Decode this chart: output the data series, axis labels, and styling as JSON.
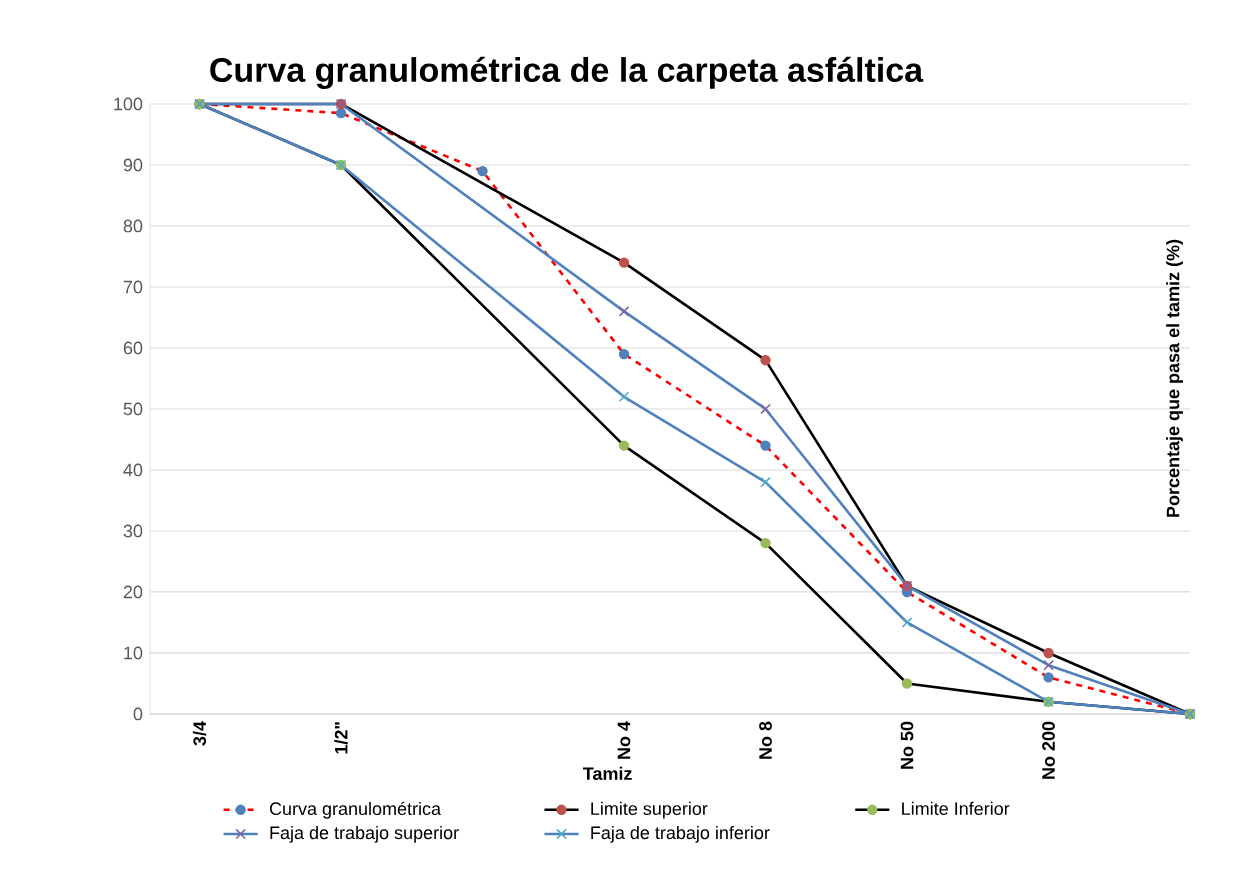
{
  "chart_data": {
    "type": "line",
    "title": "Curva granulométrica de la carpeta asfáltica",
    "xlabel": "Tamiz",
    "ylabel": "Porcentaje que pasa el tamiz (%)",
    "categories": [
      "3/4",
      "1/2\"",
      null,
      "No 4",
      "No 8",
      "No 50",
      "No 200",
      null
    ],
    "ylim": [
      0,
      100
    ],
    "yticks": [
      0,
      10,
      20,
      30,
      40,
      50,
      60,
      70,
      80,
      90,
      100
    ],
    "grid": "y",
    "legend": "bottom",
    "series": [
      {
        "name": "Curva granulométrica",
        "color": "#ff0000",
        "line_style": "dashed",
        "marker": "circle",
        "values": [
          100,
          98.5,
          89,
          59,
          44,
          20,
          6,
          0
        ],
        "colors": [
          "#4f81bd",
          "#4f81bd",
          "#4f81bd",
          "#4f81bd",
          "#4f81bd",
          "#4f81bd",
          "#4f81bd",
          "#4f81bd"
        ]
      },
      {
        "name": "Limite superior",
        "color": "#000000",
        "line_style": "solid",
        "marker": "circle",
        "values": [
          100,
          100,
          null,
          74,
          58,
          21,
          10,
          0
        ],
        "colors": [
          "#c0504d",
          "#c0504d",
          null,
          "#c0504d",
          "#c0504d",
          "#c0504d",
          "#c0504d",
          "#c0504d"
        ]
      },
      {
        "name": "Limite Inferior",
        "color": "#000000",
        "line_style": "solid",
        "marker": "circle",
        "values": [
          100,
          90,
          null,
          44,
          28,
          5,
          2,
          0
        ],
        "colors": [
          "#9bbb59",
          "#9bbb59",
          null,
          "#9bbb59",
          "#9bbb59",
          "#9bbb59",
          "#9bbb59",
          "#9bbb59"
        ]
      },
      {
        "name": "Faja de trabajo superior",
        "color": "#4f81bd",
        "line_style": "solid",
        "marker": "cross",
        "values": [
          100,
          100,
          null,
          66,
          50,
          21,
          8,
          0
        ],
        "colors": [
          "#8064a2",
          "#8064a2",
          null,
          "#8064a2",
          "#8064a2",
          "#8064a2",
          "#8064a2",
          "#8064a2"
        ]
      },
      {
        "name": "Faja de trabajo inferior",
        "color": "#4f81bd",
        "line_style": "solid",
        "marker": "cross",
        "values": [
          100,
          90,
          null,
          52,
          38,
          15,
          2,
          0
        ],
        "colors": [
          "#4bacc6",
          "#4bacc6",
          null,
          "#4bacc6",
          "#4bacc6",
          "#4bacc6",
          "#4bacc6",
          "#4bacc6"
        ]
      }
    ]
  }
}
